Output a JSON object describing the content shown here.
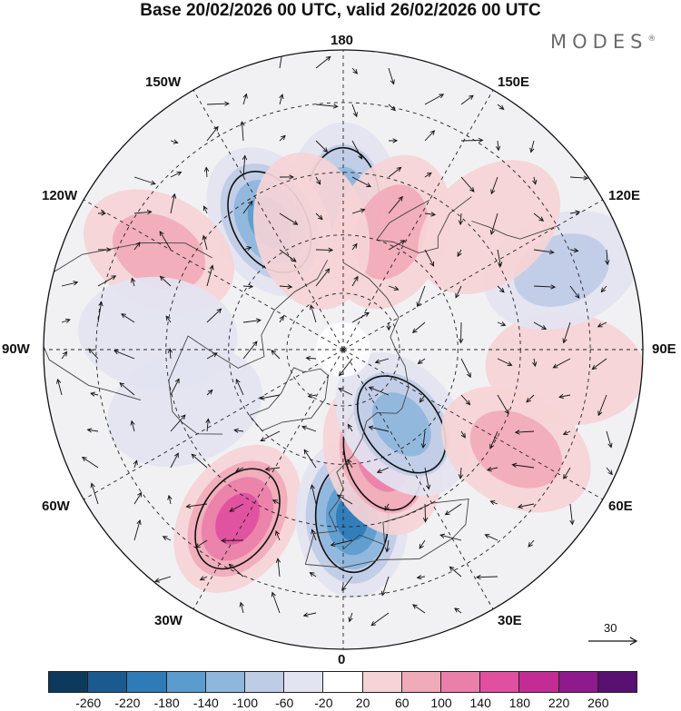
{
  "header": {
    "title": "Base 20/02/2026 00 UTC, valid 26/02/2026 00 UTC",
    "logo": "MODES",
    "logo_mark": "®"
  },
  "map": {
    "labels": {
      "lon_180": "180",
      "lon_150W": "150W",
      "lon_150E": "150E",
      "lon_120W": "120W",
      "lon_120E": "120E",
      "lon_90W": "90W",
      "lon_90E": "90E",
      "lon_60W": "60W",
      "lon_60E": "60E",
      "lon_30W": "30W",
      "lon_30E": "30E",
      "lon_0": "0"
    },
    "anomalies": [
      {
        "lon": 180,
        "lat": 52,
        "value": -120
      },
      {
        "lon": 158,
        "lat": 57,
        "value": 70
      },
      {
        "lon": -150,
        "lat": 52,
        "value": -140
      },
      {
        "lon": -165,
        "lat": 58,
        "value": 50
      },
      {
        "lon": -118,
        "lat": 38,
        "value": 90
      },
      {
        "lon": -95,
        "lat": 43,
        "value": -40
      },
      {
        "lon": -70,
        "lat": 47,
        "value": -30
      },
      {
        "lon": -32,
        "lat": 40,
        "value": 160
      },
      {
        "lon": 3,
        "lat": 47,
        "value": -200
      },
      {
        "lon": 20,
        "lat": 60,
        "value": 110
      },
      {
        "lon": 38,
        "lat": 65,
        "value": -130
      },
      {
        "lon": 60,
        "lat": 40,
        "value": 70
      },
      {
        "lon": 85,
        "lat": 35,
        "value": 50
      },
      {
        "lon": 110,
        "lat": 33,
        "value": -60
      },
      {
        "lon": 130,
        "lat": 42,
        "value": 40
      }
    ]
  },
  "colorbar": {
    "colors": [
      "#0d3a5c",
      "#1a5a8e",
      "#2f7bb7",
      "#5b9cce",
      "#8fb6dc",
      "#bfcce6",
      "#e3e4f1",
      "#ffffff",
      "#f6d4d6",
      "#f1aab8",
      "#ea7fa9",
      "#e04fa0",
      "#c42c95",
      "#8e1a8d",
      "#581071"
    ],
    "ticks": [
      "-260",
      "-220",
      "-180",
      "-140",
      "-100",
      "-60",
      "-20",
      "20",
      "60",
      "100",
      "140",
      "180",
      "220",
      "260"
    ]
  },
  "reference_vector": {
    "value": "30"
  }
}
